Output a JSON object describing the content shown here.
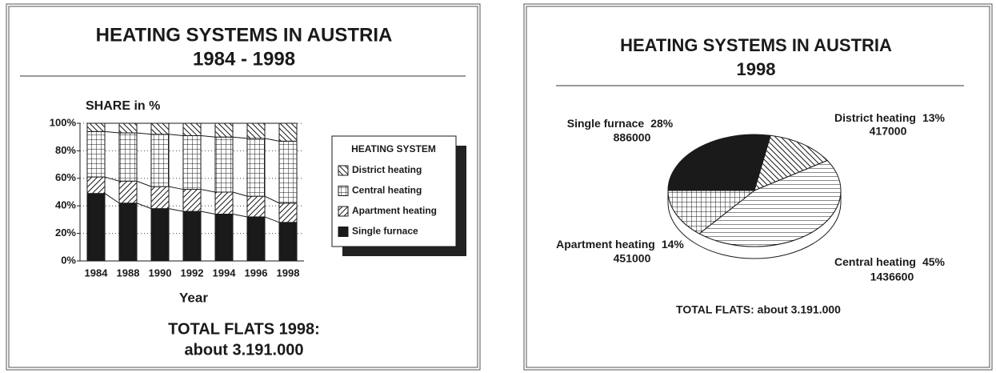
{
  "chart_data": [
    {
      "type": "stacked_bar",
      "title": "HEATING SYSTEMS IN AUSTRIA",
      "subtitle": "1984 - 1998",
      "y_label": "SHARE in %",
      "x_label": "Year",
      "categories": [
        "1984",
        "1988",
        "1990",
        "1992",
        "1994",
        "1996",
        "1998"
      ],
      "series": [
        {
          "name": "Single furnace",
          "color": "#1a1a1a",
          "pattern": "solid",
          "values": [
            49,
            42,
            38,
            36,
            34,
            32,
            28
          ]
        },
        {
          "name": "Apartment heating",
          "color": "#1a1a1a",
          "pattern": "fwd",
          "values": [
            12,
            16,
            16,
            16,
            16,
            15,
            14
          ]
        },
        {
          "name": "Central heating",
          "color": "#1a1a1a",
          "pattern": "grid",
          "values": [
            33,
            35,
            38,
            39,
            40,
            42,
            45
          ]
        },
        {
          "name": "District heating",
          "color": "#1a1a1a",
          "pattern": "back",
          "values": [
            6,
            7,
            8,
            9,
            10,
            11,
            13
          ]
        }
      ],
      "ylim": [
        0,
        100
      ],
      "yticks": [
        {
          "value": 0,
          "label": "0%"
        },
        {
          "value": 20,
          "label": "20%"
        },
        {
          "value": 40,
          "label": "40%"
        },
        {
          "value": 60,
          "label": "60%"
        },
        {
          "value": 80,
          "label": "80%"
        },
        {
          "value": 100,
          "label": "100%"
        }
      ],
      "grid": true,
      "legend_title": "HEATING SYSTEM",
      "annotation": [
        "TOTAL FLATS 1998:",
        "about 3.191.000"
      ]
    },
    {
      "type": "pie",
      "title": "HEATING SYSTEMS IN AUSTRIA",
      "subtitle": "1998",
      "categories": [
        "Single furnace",
        "District heating",
        "Central heating",
        "Apartment heating"
      ],
      "values": [
        28,
        13,
        45,
        14
      ],
      "value_labels": [
        "28%",
        "13%",
        "45%",
        "14%"
      ],
      "counts": [
        886000,
        417000,
        1436600,
        451000
      ],
      "patterns": [
        "solid",
        "back",
        "horiz",
        "grid"
      ],
      "color": "#1a1a1a",
      "annotation": "TOTAL FLATS: about 3.191.000"
    }
  ]
}
